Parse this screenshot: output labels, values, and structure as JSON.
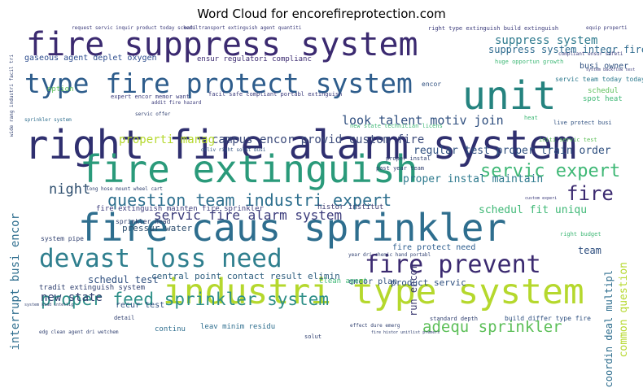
{
  "title": "Word Cloud for encorefireprotection.com",
  "words": [
    {
      "text": "right fire alarm system",
      "color": "#2f2f6f"
    },
    {
      "text": "fire suppress system",
      "color": "#3b2a70"
    },
    {
      "text": "type fire protect system",
      "color": "#2e5d8c"
    },
    {
      "text": "unit",
      "color": "#25837f"
    },
    {
      "text": "fire extinguish",
      "color": "#2a9a7a"
    },
    {
      "text": "fire caus sprinkler",
      "color": "#2e6e8e"
    },
    {
      "text": "industri type system",
      "color": "#b5d82d"
    },
    {
      "text": "devast loss need",
      "color": "#2f7f8e"
    },
    {
      "text": "fire prevent",
      "color": "#3b2a70"
    },
    {
      "text": "question team industri expert",
      "color": "#2d6f8e"
    },
    {
      "text": "proper feed sprinkler system",
      "color": "#2e8f88"
    },
    {
      "text": "servic fire alarm system",
      "color": "#3a3a7a"
    },
    {
      "text": "adequ sprinkler",
      "color": "#5cbf58"
    },
    {
      "text": "servic expert",
      "color": "#3fb876"
    },
    {
      "text": "fire",
      "color": "#3b2a70"
    },
    {
      "text": "look talent motiv join",
      "color": "#2f4f7f"
    },
    {
      "text": "campus encor provid custom fire",
      "color": "#3b4a7a"
    },
    {
      "text": "regular test proper train order",
      "color": "#2e4f7f"
    },
    {
      "text": "suppress system",
      "color": "#2e7a8e"
    },
    {
      "text": "suppress system integr fire",
      "color": "#2d6a8e"
    },
    {
      "text": "night",
      "color": "#2f4f6f"
    },
    {
      "text": "properti manag",
      "color": "#b5d82d"
    },
    {
      "text": "proper instal maintain",
      "color": "#2e7a8e"
    },
    {
      "text": "schedul fit uniqu",
      "color": "#3fb876"
    },
    {
      "text": "new state",
      "color": "#2f3f6f"
    },
    {
      "text": "schedul test",
      "color": "#2e4f7f"
    },
    {
      "text": "central point contact result elimin",
      "color": "#2f5f7f"
    },
    {
      "text": "interrupt busi encor",
      "color": "#2e6e8e"
    },
    {
      "text": "fire protect need",
      "color": "#2d5d8e"
    },
    {
      "text": "run encor",
      "color": "#3b3a70"
    },
    {
      "text": "team",
      "color": "#2f4f7f"
    },
    {
      "text": "pressur water",
      "color": "#2f4f6f"
    },
    {
      "text": "gaseous agent deplet oxygen",
      "color": "#2d4d8e"
    },
    {
      "text": "ensur regulatori complianc",
      "color": "#3b2a70"
    },
    {
      "text": "busi owner",
      "color": "#2e4f7f"
    },
    {
      "text": "fire extinguish mainten fire sprinkler",
      "color": "#3a3a7a"
    },
    {
      "text": "histor institut",
      "color": "#3b3a70"
    },
    {
      "text": "product servic",
      "color": "#2e4f7f"
    },
    {
      "text": "tradit extinguish system",
      "color": "#2f3f6f"
    },
    {
      "text": "common question",
      "color": "#b5d82d"
    },
    {
      "text": "coordin deal multipl",
      "color": "#2e6e8e"
    },
    {
      "text": "encor plan",
      "color": "#2f4f7f"
    },
    {
      "text": "recur test",
      "color": "#2f4f7f"
    },
    {
      "text": "clean agent",
      "color": "#3fb876"
    },
    {
      "text": "continu",
      "color": "#2e6e8e"
    },
    {
      "text": "leav minim residu",
      "color": "#2e6e8e"
    },
    {
      "text": "sprinkler head",
      "color": "#2f3f6f"
    },
    {
      "text": "option",
      "color": "#5cbf58"
    },
    {
      "text": "schedul",
      "color": "#5cbf58"
    },
    {
      "text": "spot heat",
      "color": "#3fb876"
    },
    {
      "text": "encor",
      "color": "#2f4f7f"
    },
    {
      "text": "servic team today today",
      "color": "#2e7a8e"
    },
    {
      "text": "request servic inquir product today schedul",
      "color": "#3a3a7a"
    },
    {
      "text": "right type extinguish build extinguish",
      "color": "#3a3a7a"
    },
    {
      "text": "build differ type fire",
      "color": "#2e4f7f"
    },
    {
      "text": "standard depth",
      "color": "#2f3f6f"
    },
    {
      "text": "system pipe",
      "color": "#2f3f6f"
    },
    {
      "text": "detail",
      "color": "#2f3f6f"
    },
    {
      "text": "solut",
      "color": "#2f3f6f"
    },
    {
      "text": "huge opportun growth",
      "color": "#3fb876"
    },
    {
      "text": "live protect busi",
      "color": "#2e4f7f"
    },
    {
      "text": "initi servic test",
      "color": "#5cbf58"
    },
    {
      "text": "past year team",
      "color": "#2f3f6f"
    },
    {
      "text": "right budget",
      "color": "#3fb876"
    },
    {
      "text": "equip properti",
      "color": "#3a3a7a"
    },
    {
      "text": "compliant ensur safeti",
      "color": "#3a3a7a"
    },
    {
      "text": "expert encor memor want",
      "color": "#3a3a7a"
    },
    {
      "text": "facil safe compliant portabl extinguish",
      "color": "#3a3a7a"
    },
    {
      "text": "new state technician licens",
      "color": "#3fb876"
    },
    {
      "text": "system backflow test",
      "color": "#3a3a7a"
    },
    {
      "text": "custom experi",
      "color": "#3a3a7a"
    },
    {
      "text": "sprinkler system",
      "color": "#2e6e8e"
    },
    {
      "text": "proper instal",
      "color": "#2f3f6f"
    },
    {
      "text": "long hose mount wheel cart",
      "color": "#2f3f6f"
    },
    {
      "text": "deliv right solut busi",
      "color": "#2e4f7f"
    },
    {
      "text": "wide rang industri facil tri",
      "color": "#2f3f6f"
    },
    {
      "text": "year dri chemic hand portabl",
      "color": "#2f3f6f"
    },
    {
      "text": "edg clean agent dri wetchem",
      "color": "#2f3f6f"
    },
    {
      "text": "effect dure emerg",
      "color": "#2f3f6f"
    },
    {
      "text": "fire histor unitlist premers",
      "color": "#2f3f6f"
    },
    {
      "text": "system kidd intellig",
      "color": "#2f3f6f"
    },
    {
      "text": "servic offer",
      "color": "#2f3f6f"
    },
    {
      "text": "addit fire hazard",
      "color": "#3a3a7a"
    },
    {
      "text": "heat",
      "color": "#3fb876"
    },
    {
      "text": "eati transport extinguish agent quantiti",
      "color": "#3a3a7a"
    }
  ]
}
